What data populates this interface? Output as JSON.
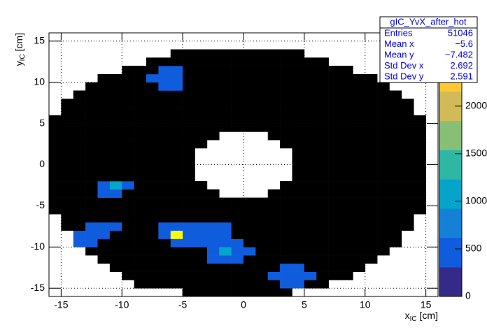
{
  "chart_data": {
    "type": "heatmap",
    "stats": {
      "title": "gIC_YvX_after_hot",
      "rows": [
        [
          "Entries",
          "51046"
        ],
        [
          "Mean x",
          "−5.6"
        ],
        [
          "Mean y",
          "−7.482"
        ],
        [
          "Std Dev x",
          "2.692"
        ],
        [
          "Std Dev y",
          "2.591"
        ]
      ]
    },
    "xlabel": {
      "base": "x",
      "sub": "IC",
      "unit": "[cm]"
    },
    "ylabel": {
      "base": "y",
      "sub": "IC",
      "unit": "[cm]"
    },
    "xlim": [
      -16,
      16
    ],
    "ylim": [
      -16,
      16
    ],
    "zlim": [
      0,
      2770
    ],
    "xticks": [
      -15,
      -10,
      -5,
      0,
      5,
      10,
      15
    ],
    "yticks": [
      -15,
      -10,
      -5,
      0,
      5,
      10,
      15
    ],
    "zticks": [
      0,
      500,
      1000,
      1500,
      2000
    ],
    "grid": true,
    "palette": [
      "#352a87",
      "#0f5cdd",
      "#1481d6",
      "#06a4ca",
      "#2eb7a4",
      "#87bf77",
      "#d1bb59",
      "#fec832",
      "#f9fb0e"
    ],
    "underflow_color": "#000000",
    "xbins": [
      -16,
      -15,
      -14,
      -13,
      -12,
      -11,
      -10,
      -9,
      -8,
      -7,
      -6,
      -5,
      -4,
      -3,
      -2,
      -1,
      0,
      1,
      2,
      3,
      4,
      5,
      6,
      7,
      8,
      9,
      10,
      11,
      12,
      13,
      14,
      15,
      16
    ],
    "ybins": [
      -16,
      -15,
      -14,
      -13,
      -12,
      -11,
      -10,
      -9,
      -8,
      -7,
      -6,
      -5,
      -4,
      -3,
      -2,
      -1,
      0,
      1,
      2,
      3,
      4,
      5,
      6,
      7,
      8,
      9,
      10,
      11,
      12,
      13,
      14,
      15,
      16
    ],
    "z": [
      [
        null,
        null,
        null,
        null,
        null,
        null,
        null,
        null,
        null,
        null,
        null,
        0,
        0,
        0,
        0,
        0,
        0,
        0,
        0,
        0,
        null,
        null,
        null,
        null,
        null,
        null,
        null,
        null,
        null,
        null,
        null,
        null
      ],
      [
        null,
        null,
        null,
        null,
        null,
        null,
        null,
        0,
        0,
        0,
        0,
        0,
        0,
        0,
        0,
        0,
        0,
        0,
        0,
        350,
        350,
        0,
        0,
        null,
        null,
        null,
        null,
        null,
        null,
        null,
        null,
        null
      ],
      [
        null,
        null,
        null,
        null,
        null,
        null,
        0,
        0,
        0,
        0,
        0,
        0,
        0,
        0,
        0,
        0,
        0,
        0,
        350,
        350,
        350,
        350,
        0,
        0,
        0,
        null,
        null,
        null,
        null,
        null,
        null,
        null
      ],
      [
        null,
        null,
        null,
        null,
        null,
        0,
        0,
        0,
        0,
        0,
        0,
        0,
        0,
        0,
        0,
        0,
        0,
        0,
        0,
        350,
        350,
        0,
        0,
        0,
        0,
        0,
        null,
        null,
        null,
        null,
        null,
        null
      ],
      [
        null,
        null,
        null,
        null,
        0,
        0,
        0,
        0,
        0,
        0,
        0,
        0,
        0,
        350,
        350,
        350,
        0,
        0,
        0,
        0,
        0,
        0,
        0,
        0,
        0,
        0,
        0,
        null,
        null,
        null,
        null,
        null
      ],
      [
        null,
        null,
        null,
        0,
        0,
        0,
        0,
        0,
        0,
        0,
        0,
        0,
        0,
        350,
        1000,
        350,
        350,
        0,
        0,
        0,
        0,
        0,
        0,
        0,
        0,
        0,
        0,
        0,
        null,
        null,
        null,
        null
      ],
      [
        null,
        null,
        350,
        350,
        0,
        0,
        0,
        0,
        0,
        0,
        350,
        350,
        350,
        350,
        350,
        350,
        0,
        0,
        0,
        0,
        0,
        0,
        0,
        0,
        0,
        0,
        0,
        0,
        0,
        null,
        null,
        null
      ],
      [
        null,
        null,
        350,
        350,
        350,
        0,
        0,
        0,
        0,
        350,
        2600,
        350,
        350,
        350,
        350,
        0,
        0,
        0,
        0,
        0,
        0,
        0,
        0,
        0,
        0,
        0,
        0,
        0,
        0,
        null,
        null,
        null
      ],
      [
        null,
        0,
        0,
        350,
        350,
        350,
        0,
        0,
        0,
        350,
        350,
        350,
        350,
        350,
        350,
        0,
        0,
        0,
        0,
        0,
        0,
        0,
        0,
        0,
        0,
        0,
        0,
        0,
        0,
        0,
        null,
        null
      ],
      [
        null,
        0,
        0,
        0,
        0,
        0,
        0,
        0,
        0,
        0,
        0,
        0,
        0,
        0,
        0,
        0,
        0,
        0,
        0,
        0,
        0,
        0,
        0,
        0,
        0,
        0,
        0,
        0,
        0,
        0,
        null,
        null
      ],
      [
        0,
        0,
        0,
        0,
        0,
        0,
        0,
        0,
        0,
        0,
        0,
        0,
        0,
        0,
        0,
        0,
        0,
        0,
        0,
        0,
        0,
        0,
        0,
        0,
        0,
        0,
        0,
        0,
        0,
        0,
        0,
        null
      ],
      [
        0,
        0,
        0,
        0,
        0,
        0,
        0,
        0,
        0,
        0,
        0,
        0,
        0,
        0,
        0,
        0,
        0,
        0,
        0,
        0,
        0,
        0,
        0,
        0,
        0,
        0,
        0,
        0,
        0,
        0,
        0,
        null
      ],
      [
        0,
        0,
        0,
        0,
        350,
        350,
        0,
        0,
        0,
        0,
        0,
        0,
        0,
        0,
        null,
        null,
        null,
        null,
        0,
        0,
        0,
        0,
        0,
        0,
        0,
        0,
        0,
        0,
        0,
        0,
        0,
        null
      ],
      [
        0,
        0,
        0,
        0,
        350,
        1000,
        350,
        0,
        0,
        0,
        0,
        0,
        0,
        null,
        null,
        null,
        null,
        null,
        null,
        0,
        0,
        0,
        0,
        0,
        0,
        0,
        0,
        0,
        0,
        0,
        0,
        null
      ],
      [
        0,
        0,
        0,
        0,
        0,
        0,
        0,
        0,
        0,
        0,
        0,
        0,
        null,
        null,
        null,
        null,
        null,
        null,
        null,
        null,
        0,
        0,
        0,
        0,
        0,
        0,
        0,
        0,
        0,
        0,
        0,
        null
      ],
      [
        0,
        0,
        0,
        0,
        0,
        0,
        0,
        0,
        0,
        0,
        0,
        0,
        null,
        null,
        null,
        null,
        null,
        null,
        null,
        null,
        0,
        0,
        0,
        0,
        0,
        0,
        0,
        0,
        0,
        0,
        0,
        null
      ],
      [
        0,
        0,
        0,
        0,
        0,
        0,
        0,
        0,
        0,
        0,
        0,
        0,
        null,
        null,
        null,
        null,
        null,
        null,
        null,
        null,
        0,
        0,
        0,
        0,
        0,
        0,
        0,
        0,
        0,
        0,
        0,
        null
      ],
      [
        0,
        0,
        0,
        0,
        0,
        0,
        0,
        0,
        0,
        0,
        0,
        0,
        null,
        null,
        null,
        null,
        null,
        null,
        null,
        null,
        0,
        0,
        0,
        0,
        0,
        0,
        0,
        0,
        0,
        0,
        0,
        null
      ],
      [
        0,
        0,
        0,
        0,
        0,
        0,
        0,
        0,
        0,
        0,
        0,
        0,
        0,
        null,
        null,
        null,
        null,
        null,
        null,
        0,
        0,
        0,
        0,
        0,
        0,
        0,
        0,
        0,
        0,
        0,
        0,
        null
      ],
      [
        0,
        0,
        0,
        0,
        0,
        0,
        0,
        0,
        0,
        0,
        0,
        0,
        0,
        0,
        null,
        null,
        null,
        null,
        0,
        0,
        0,
        0,
        0,
        0,
        0,
        0,
        0,
        0,
        0,
        0,
        0,
        null
      ],
      [
        0,
        0,
        0,
        0,
        0,
        0,
        0,
        0,
        0,
        0,
        0,
        0,
        0,
        0,
        0,
        0,
        0,
        0,
        0,
        0,
        0,
        0,
        0,
        0,
        0,
        0,
        0,
        0,
        0,
        0,
        0,
        null
      ],
      [
        0,
        0,
        0,
        0,
        0,
        0,
        0,
        0,
        0,
        0,
        0,
        0,
        0,
        0,
        0,
        0,
        0,
        0,
        0,
        0,
        0,
        0,
        0,
        0,
        0,
        0,
        0,
        0,
        0,
        0,
        0,
        null
      ],
      [
        null,
        0,
        0,
        0,
        0,
        0,
        0,
        0,
        0,
        0,
        0,
        0,
        0,
        0,
        0,
        0,
        0,
        0,
        0,
        0,
        0,
        0,
        0,
        0,
        0,
        0,
        0,
        0,
        0,
        0,
        null,
        null
      ],
      [
        null,
        0,
        0,
        0,
        0,
        0,
        0,
        0,
        0,
        0,
        0,
        0,
        0,
        0,
        0,
        0,
        0,
        0,
        0,
        0,
        0,
        0,
        0,
        0,
        0,
        0,
        0,
        0,
        0,
        0,
        null,
        null
      ],
      [
        null,
        null,
        0,
        0,
        0,
        0,
        0,
        0,
        0,
        0,
        0,
        0,
        0,
        0,
        0,
        0,
        0,
        0,
        0,
        0,
        0,
        0,
        0,
        0,
        0,
        0,
        0,
        0,
        0,
        null,
        null,
        null
      ],
      [
        null,
        null,
        null,
        0,
        0,
        0,
        0,
        0,
        0,
        350,
        350,
        0,
        0,
        0,
        0,
        0,
        0,
        0,
        0,
        0,
        0,
        0,
        0,
        0,
        0,
        0,
        0,
        0,
        null,
        null,
        null,
        null
      ],
      [
        null,
        null,
        null,
        null,
        0,
        0,
        0,
        0,
        350,
        350,
        350,
        0,
        0,
        0,
        0,
        0,
        0,
        0,
        0,
        0,
        0,
        0,
        0,
        0,
        0,
        0,
        0,
        null,
        null,
        null,
        null,
        null
      ],
      [
        null,
        null,
        null,
        null,
        null,
        null,
        0,
        0,
        0,
        350,
        350,
        0,
        0,
        0,
        0,
        0,
        0,
        0,
        0,
        0,
        0,
        0,
        0,
        0,
        0,
        null,
        null,
        null,
        null,
        null,
        null,
        null
      ],
      [
        null,
        null,
        null,
        null,
        null,
        null,
        null,
        null,
        0,
        0,
        0,
        0,
        0,
        0,
        0,
        0,
        0,
        0,
        0,
        0,
        0,
        0,
        0,
        null,
        null,
        null,
        null,
        null,
        null,
        null,
        null,
        null
      ],
      [
        null,
        null,
        null,
        null,
        null,
        null,
        null,
        null,
        null,
        null,
        0,
        0,
        0,
        0,
        0,
        0,
        0,
        0,
        0,
        0,
        0,
        null,
        null,
        null,
        null,
        null,
        null,
        null,
        null,
        null,
        null,
        null
      ],
      [
        null,
        null,
        null,
        null,
        null,
        null,
        null,
        null,
        null,
        null,
        null,
        null,
        null,
        null,
        null,
        null,
        null,
        null,
        null,
        null,
        null,
        null,
        null,
        null,
        null,
        null,
        null,
        null,
        null,
        null,
        null,
        null
      ],
      [
        null,
        null,
        null,
        null,
        null,
        null,
        null,
        null,
        null,
        null,
        null,
        null,
        null,
        null,
        null,
        null,
        null,
        null,
        null,
        null,
        null,
        null,
        null,
        null,
        null,
        null,
        null,
        null,
        null,
        null,
        null,
        null
      ]
    ]
  }
}
